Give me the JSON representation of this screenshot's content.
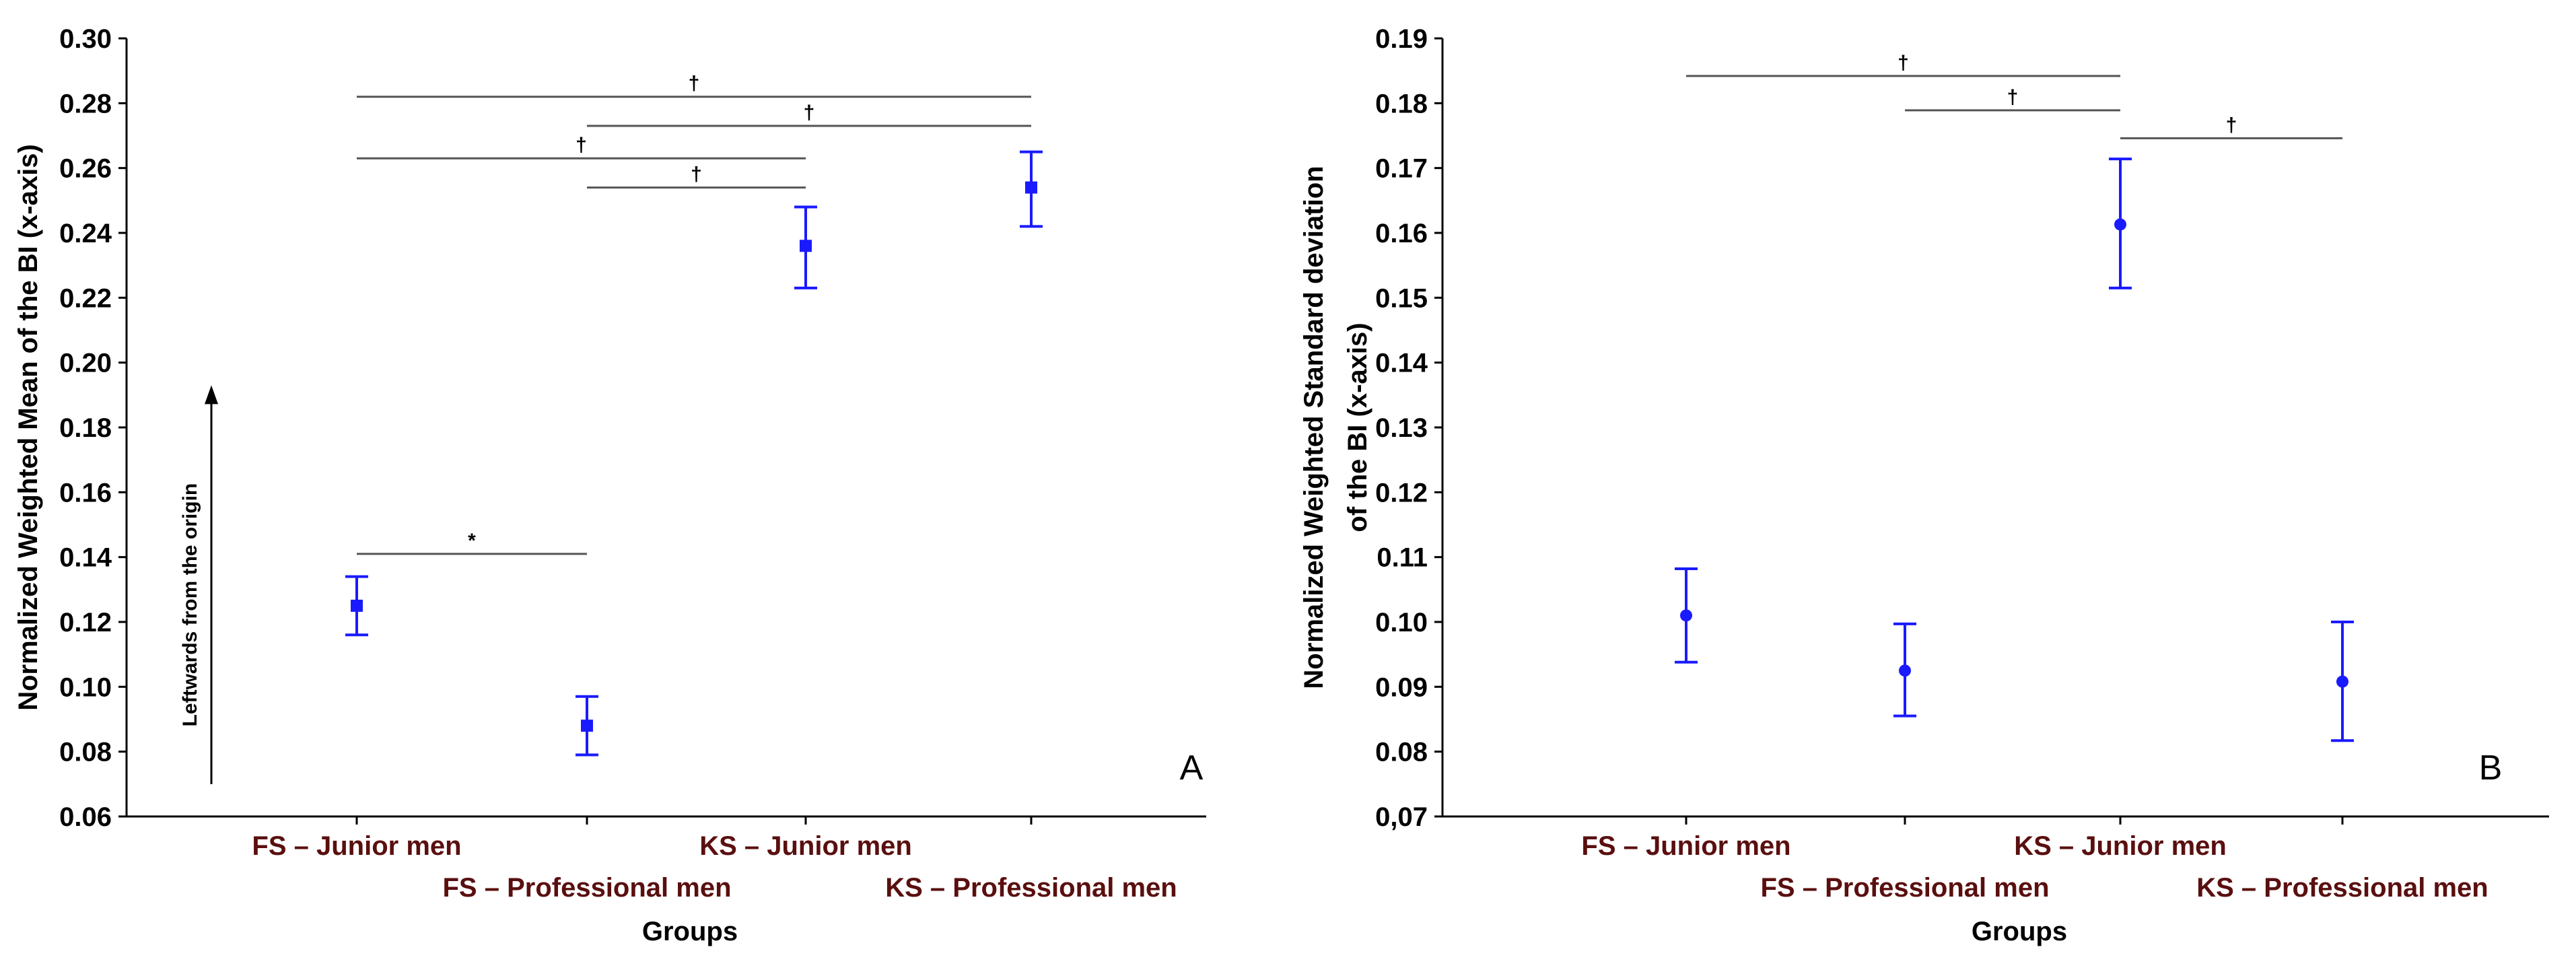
{
  "colors": {
    "point": "#1a1aff",
    "category_text": "#5a0f0f",
    "axis": "#000000",
    "sig_line": "#555555"
  },
  "chart_data": [
    {
      "type": "scatter",
      "panel_label": "A",
      "title": "",
      "xlabel": "Groups",
      "ylabel": "Normalized Weighted Mean of the BI (x-axis)",
      "ylim": [
        0.06,
        0.3
      ],
      "yticks": [
        "0.06",
        "0.08",
        "0.10",
        "0.12",
        "0.14",
        "0.16",
        "0.18",
        "0.20",
        "0.22",
        "0.24",
        "0.26",
        "0.28",
        "0.30"
      ],
      "marker": "square",
      "categories": [
        "FS – Junior men",
        "FS – Professional men",
        "KS – Junior men",
        "KS – Professional men"
      ],
      "values": [
        0.125,
        0.088,
        0.236,
        0.254
      ],
      "err_low": [
        0.116,
        0.079,
        0.223,
        0.242
      ],
      "err_high": [
        0.134,
        0.097,
        0.248,
        0.265
      ],
      "annotations": [
        {
          "from": 0,
          "to": 3,
          "y": 0.282,
          "symbol": "†"
        },
        {
          "from": 1,
          "to": 3,
          "y": 0.273,
          "symbol": "†"
        },
        {
          "from": 0,
          "to": 2,
          "y": 0.263,
          "symbol": "†"
        },
        {
          "from": 1,
          "to": 2,
          "y": 0.254,
          "symbol": "†"
        },
        {
          "from": 0,
          "to": 1,
          "y": 0.141,
          "symbol": "*"
        }
      ],
      "arrow_label": "Leftwards from the origin",
      "arrow_from": 0.07,
      "arrow_to": 0.193
    },
    {
      "type": "scatter",
      "panel_label": "B",
      "title": "",
      "xlabel": "Groups",
      "ylabel_lines": [
        "Normalized Weighted Standard deviation",
        "of the BI (x-axis)"
      ],
      "ylim": [
        0.07,
        0.19
      ],
      "yticks": [
        "0,07",
        "0.08",
        "0.09",
        "0.10",
        "0.11",
        "0.12",
        "0.13",
        "0.14",
        "0.15",
        "0.16",
        "0.17",
        "0.18",
        "0.19"
      ],
      "marker": "circle",
      "categories": [
        "FS – Junior men",
        "FS – Professional men",
        "KS – Junior men",
        "KS – Professional men"
      ],
      "values": [
        0.101,
        0.0925,
        0.1613,
        0.0908
      ],
      "err_low": [
        0.0938,
        0.0855,
        0.1515,
        0.0817
      ],
      "err_high": [
        0.1082,
        0.0997,
        0.1714,
        0.1
      ],
      "annotations": [
        {
          "from": 0,
          "to": 2,
          "y": 0.1842,
          "symbol": "†"
        },
        {
          "from": 1,
          "to": 2,
          "y": 0.1789,
          "symbol": "†"
        },
        {
          "from": 2,
          "to": 3,
          "y": 0.1746,
          "symbol": "†"
        }
      ]
    }
  ]
}
